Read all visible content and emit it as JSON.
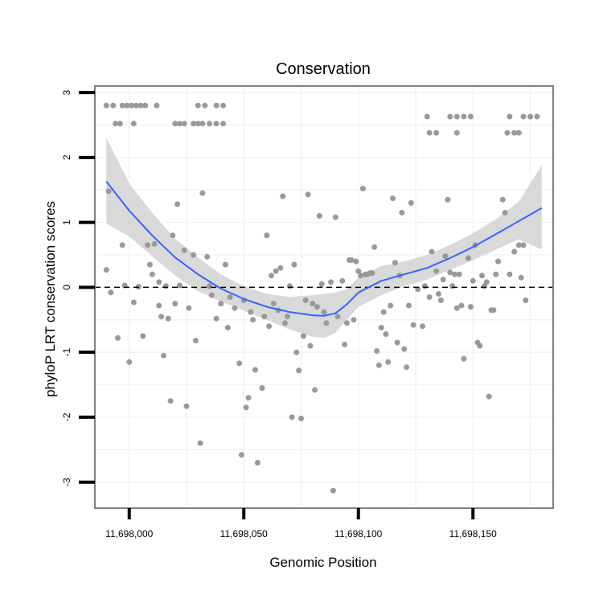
{
  "chart_data": {
    "type": "scatter",
    "title": "Conservation",
    "xlabel": "Genomic Position",
    "ylabel": "phyloP LRT conservation scores",
    "xlim": [
      11697985,
      11698185
    ],
    "ylim": [
      -3.4,
      3.1
    ],
    "x_ticks": [
      11698000,
      11698050,
      11698100,
      11698150
    ],
    "x_tick_labels": [
      "11,698,000",
      "11,698,050",
      "11,698,100",
      "11,698,150"
    ],
    "y_ticks": [
      -3,
      -2,
      -1,
      0,
      1,
      2,
      3
    ],
    "y_tick_labels": [
      "-3",
      "-2",
      "-1",
      "0",
      "1",
      "2",
      "3"
    ],
    "reference_line": {
      "y": 0,
      "style": "dashed"
    },
    "grid": true,
    "colors": {
      "points": "#999999",
      "smooth": "#3366ff",
      "ribbon": "#d9d9d9",
      "frame": "#808080"
    },
    "points": [
      [
        11697990,
        2.8
      ],
      [
        11697993,
        2.8
      ],
      [
        11697997,
        2.8
      ],
      [
        11697999,
        2.8
      ],
      [
        11698001,
        2.8
      ],
      [
        11698003,
        2.8
      ],
      [
        11698005,
        2.8
      ],
      [
        11698007,
        2.8
      ],
      [
        11698012,
        2.8
      ],
      [
        11698030,
        2.8
      ],
      [
        11698033,
        2.8
      ],
      [
        11698038,
        2.8
      ],
      [
        11698041,
        2.8
      ],
      [
        11697994,
        2.52
      ],
      [
        11697996,
        2.52
      ],
      [
        11698002,
        2.52
      ],
      [
        11698020,
        2.52
      ],
      [
        11698022,
        2.52
      ],
      [
        11698024,
        2.52
      ],
      [
        11698028,
        2.52
      ],
      [
        11698030,
        2.52
      ],
      [
        11698032,
        2.52
      ],
      [
        11698035,
        2.52
      ],
      [
        11698038,
        2.52
      ],
      [
        11698041,
        2.52
      ],
      [
        11698130,
        2.63
      ],
      [
        11698140,
        2.63
      ],
      [
        11698143,
        2.63
      ],
      [
        11698146,
        2.63
      ],
      [
        11698149,
        2.63
      ],
      [
        11698166,
        2.63
      ],
      [
        11698172,
        2.63
      ],
      [
        11698175,
        2.63
      ],
      [
        11698178,
        2.63
      ],
      [
        11698131,
        2.38
      ],
      [
        11698134,
        2.38
      ],
      [
        11698143,
        2.38
      ],
      [
        11698165,
        2.38
      ],
      [
        11698168,
        2.38
      ],
      [
        11698170,
        2.38
      ],
      [
        11697990,
        0.27
      ],
      [
        11697991,
        1.48
      ],
      [
        11697992,
        -0.08
      ],
      [
        11697995,
        -0.78
      ],
      [
        11697997,
        0.65
      ],
      [
        11697998,
        0.03
      ],
      [
        11698000,
        -1.15
      ],
      [
        11698002,
        -0.23
      ],
      [
        11698004,
        0.01
      ],
      [
        11698006,
        -0.75
      ],
      [
        11698008,
        0.65
      ],
      [
        11698009,
        0.35
      ],
      [
        11698010,
        0.2
      ],
      [
        11698011,
        0.67
      ],
      [
        11698013,
        0.08
      ],
      [
        11698013,
        -0.28
      ],
      [
        11698014,
        -0.45
      ],
      [
        11698015,
        -1.05
      ],
      [
        11698016,
        0.02
      ],
      [
        11698017,
        -0.48
      ],
      [
        11698018,
        -1.75
      ],
      [
        11698019,
        0.8
      ],
      [
        11698020,
        -0.25
      ],
      [
        11698021,
        1.28
      ],
      [
        11698022,
        0.03
      ],
      [
        11698024,
        0.57
      ],
      [
        11698025,
        -1.83
      ],
      [
        11698026,
        -0.32
      ],
      [
        11698028,
        0.5
      ],
      [
        11698029,
        -0.82
      ],
      [
        11698031,
        -2.4
      ],
      [
        11698032,
        1.45
      ],
      [
        11698034,
        0.47
      ],
      [
        11698035,
        0.02
      ],
      [
        11698036,
        -0.12
      ],
      [
        11698038,
        -0.48
      ],
      [
        11698040,
        -0.25
      ],
      [
        11698042,
        0.35
      ],
      [
        11698043,
        -0.62
      ],
      [
        11698044,
        -0.15
      ],
      [
        11698046,
        -0.32
      ],
      [
        11698048,
        -1.17
      ],
      [
        11698049,
        -2.58
      ],
      [
        11698050,
        -0.2
      ],
      [
        11698051,
        -1.85
      ],
      [
        11698052,
        -1.7
      ],
      [
        11698053,
        -0.38
      ],
      [
        11698054,
        -0.5
      ],
      [
        11698055,
        -1.27
      ],
      [
        11698056,
        -2.7
      ],
      [
        11698058,
        -1.55
      ],
      [
        11698059,
        -0.45
      ],
      [
        11698060,
        0.8
      ],
      [
        11698061,
        -0.6
      ],
      [
        11698062,
        0.18
      ],
      [
        11698063,
        -0.25
      ],
      [
        11698064,
        0.25
      ],
      [
        11698065,
        -0.35
      ],
      [
        11698066,
        0.3
      ],
      [
        11698067,
        1.4
      ],
      [
        11698068,
        -0.55
      ],
      [
        11698069,
        -0.45
      ],
      [
        11698070,
        0.02
      ],
      [
        11698071,
        -2.0
      ],
      [
        11698072,
        0.35
      ],
      [
        11698073,
        -1.0
      ],
      [
        11698074,
        -1.28
      ],
      [
        11698075,
        -2.02
      ],
      [
        11698076,
        -0.75
      ],
      [
        11698077,
        -0.2
      ],
      [
        11698078,
        1.43
      ],
      [
        11698079,
        -0.9
      ],
      [
        11698080,
        -0.25
      ],
      [
        11698081,
        -1.58
      ],
      [
        11698082,
        -0.3
      ],
      [
        11698083,
        1.1
      ],
      [
        11698084,
        0.05
      ],
      [
        11698085,
        -0.38
      ],
      [
        11698086,
        -0.55
      ],
      [
        11698088,
        0.08
      ],
      [
        11698089,
        -3.13
      ],
      [
        11698090,
        1.08
      ],
      [
        11698091,
        -0.45
      ],
      [
        11698093,
        0.1
      ],
      [
        11698094,
        -0.88
      ],
      [
        11698095,
        -0.55
      ],
      [
        11698096,
        0.42
      ],
      [
        11698097,
        0.42
      ],
      [
        11698098,
        -0.5
      ],
      [
        11698099,
        0.4
      ],
      [
        11698100,
        0.25
      ],
      [
        11698101,
        0.18
      ],
      [
        11698102,
        1.52
      ],
      [
        11698103,
        0.2
      ],
      [
        11698104,
        0.2
      ],
      [
        11698105,
        0.22
      ],
      [
        11698106,
        0.22
      ],
      [
        11698107,
        0.62
      ],
      [
        11698108,
        -0.98
      ],
      [
        11698109,
        -1.2
      ],
      [
        11698110,
        -0.62
      ],
      [
        11698111,
        -0.38
      ],
      [
        11698112,
        -0.72
      ],
      [
        11698113,
        -1.15
      ],
      [
        11698114,
        -0.28
      ],
      [
        11698115,
        1.37
      ],
      [
        11698116,
        0.38
      ],
      [
        11698117,
        -0.85
      ],
      [
        11698118,
        0.18
      ],
      [
        11698119,
        1.15
      ],
      [
        11698120,
        -0.95
      ],
      [
        11698121,
        -1.23
      ],
      [
        11698122,
        -0.28
      ],
      [
        11698123,
        1.3
      ],
      [
        11698124,
        -0.58
      ],
      [
        11698126,
        -0.03
      ],
      [
        11698128,
        -0.6
      ],
      [
        11698129,
        0.02
      ],
      [
        11698131,
        -0.15
      ],
      [
        11698132,
        0.55
      ],
      [
        11698134,
        0.25
      ],
      [
        11698135,
        -0.1
      ],
      [
        11698136,
        -0.2
      ],
      [
        11698137,
        0.12
      ],
      [
        11698138,
        0.48
      ],
      [
        11698139,
        1.35
      ],
      [
        11698140,
        0.23
      ],
      [
        11698141,
        0.02
      ],
      [
        11698142,
        0.2
      ],
      [
        11698143,
        -0.32
      ],
      [
        11698144,
        0.2
      ],
      [
        11698145,
        -0.28
      ],
      [
        11698146,
        -1.1
      ],
      [
        11698148,
        0.45
      ],
      [
        11698149,
        -0.3
      ],
      [
        11698150,
        0.1
      ],
      [
        11698151,
        0.65
      ],
      [
        11698152,
        -0.85
      ],
      [
        11698153,
        -0.9
      ],
      [
        11698154,
        0.18
      ],
      [
        11698155,
        0.02
      ],
      [
        11698156,
        0.08
      ],
      [
        11698157,
        -1.68
      ],
      [
        11698158,
        -0.35
      ],
      [
        11698159,
        -0.35
      ],
      [
        11698160,
        0.2
      ],
      [
        11698161,
        0.4
      ],
      [
        11698163,
        1.35
      ],
      [
        11698164,
        1.15
      ],
      [
        11698166,
        0.2
      ],
      [
        11698168,
        0.55
      ],
      [
        11698170,
        0.65
      ],
      [
        11698171,
        0.15
      ],
      [
        11698172,
        0.65
      ],
      [
        11698173,
        -0.2
      ]
    ],
    "smooth": {
      "x": [
        11697990,
        11698000,
        11698010,
        11698020,
        11698030,
        11698040,
        11698050,
        11698060,
        11698070,
        11698080,
        11698085,
        11698090,
        11698095,
        11698100,
        11698110,
        11698120,
        11698130,
        11698140,
        11698150,
        11698160,
        11698170,
        11698180
      ],
      "y": [
        1.63,
        1.18,
        0.8,
        0.46,
        0.2,
        -0.02,
        -0.18,
        -0.3,
        -0.38,
        -0.43,
        -0.44,
        -0.4,
        -0.26,
        -0.08,
        0.1,
        0.2,
        0.3,
        0.45,
        0.62,
        0.82,
        1.02,
        1.22
      ]
    },
    "ribbon": {
      "x": [
        11697990,
        11698000,
        11698010,
        11698020,
        11698030,
        11698040,
        11698050,
        11698060,
        11698070,
        11698080,
        11698085,
        11698090,
        11698095,
        11698100,
        11698110,
        11698120,
        11698130,
        11698140,
        11698150,
        11698160,
        11698170,
        11698180
      ],
      "lower": [
        0.98,
        0.78,
        0.48,
        0.18,
        -0.06,
        -0.22,
        -0.36,
        -0.5,
        -0.65,
        -0.76,
        -0.78,
        -0.7,
        -0.5,
        -0.3,
        -0.12,
        0.02,
        0.12,
        0.27,
        0.42,
        0.58,
        0.74,
        0.58
      ],
      "upper": [
        2.3,
        1.6,
        1.15,
        0.75,
        0.46,
        0.2,
        0.02,
        -0.1,
        -0.15,
        -0.12,
        -0.1,
        -0.08,
        -0.03,
        0.15,
        0.33,
        0.4,
        0.5,
        0.65,
        0.83,
        1.05,
        1.32,
        1.88
      ]
    }
  }
}
